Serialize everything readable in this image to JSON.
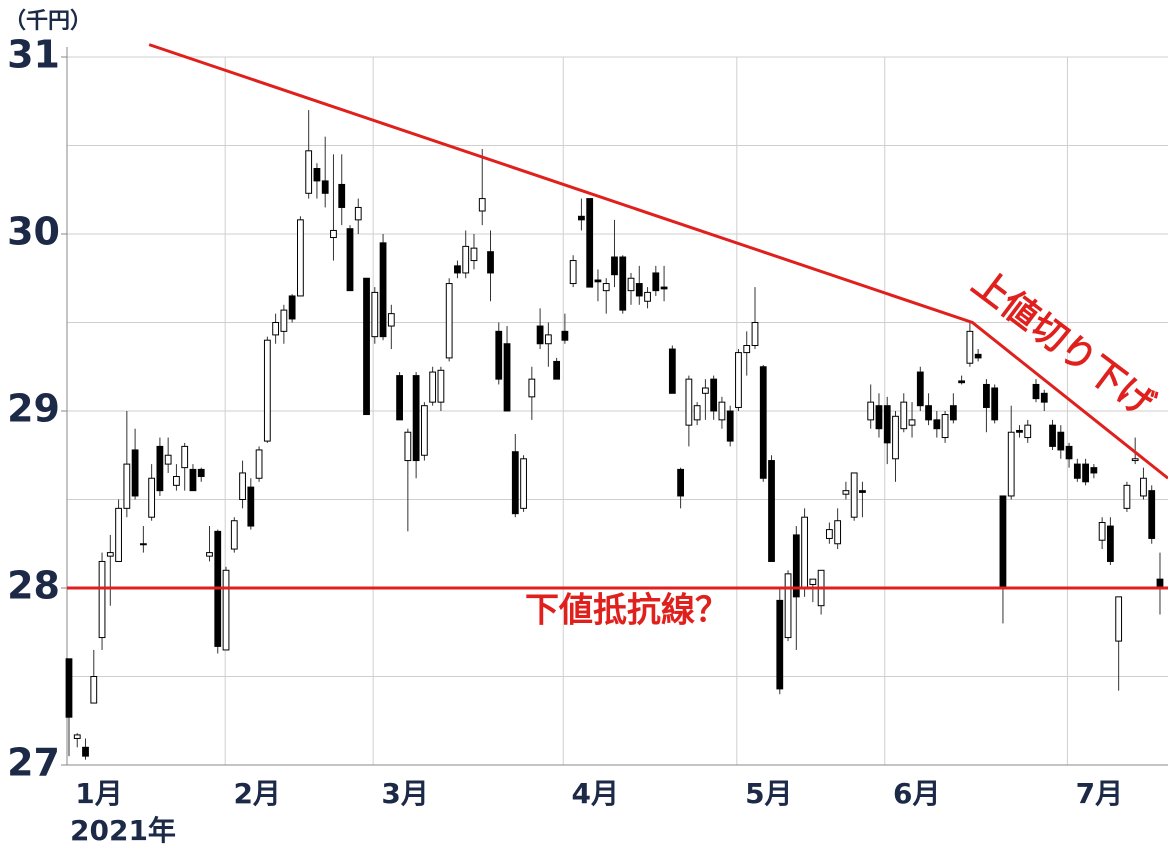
{
  "chart_data": {
    "type": "candlestick",
    "ylabel": "（千円）",
    "xlabel": "2021年",
    "ylim": [
      27,
      31
    ],
    "yticks": [
      27,
      28,
      29,
      30,
      31
    ],
    "minor_yticks": [
      27.5,
      28.5,
      29.5,
      30.5
    ],
    "xlim": [
      -0.24,
      132.97
    ],
    "xticks": [
      {
        "value": -0.24,
        "label": "1月"
      },
      {
        "value": 18.9,
        "label": "2月"
      },
      {
        "value": 36.8,
        "label": "3月"
      },
      {
        "value": 59.8,
        "label": "4月"
      },
      {
        "value": 80.8,
        "label": "5月"
      },
      {
        "value": 98.7,
        "label": "6月"
      },
      {
        "value": 120.8,
        "label": "7月"
      }
    ],
    "grid": true,
    "up_color": "#ffffff",
    "down_color": "#000000",
    "line_color": "#e0201c",
    "ohlc": [
      [
        27.6,
        27.6,
        27.05,
        27.27
      ],
      [
        27.15,
        27.18,
        27.1,
        27.17
      ],
      [
        27.1,
        27.15,
        27.03,
        27.05
      ],
      [
        27.35,
        27.65,
        27.35,
        27.5
      ],
      [
        27.72,
        28.2,
        27.65,
        28.15
      ],
      [
        28.18,
        28.3,
        27.9,
        28.2
      ],
      [
        28.15,
        28.5,
        28.15,
        28.45
      ],
      [
        28.45,
        29.0,
        28.4,
        28.7
      ],
      [
        28.78,
        28.9,
        28.5,
        28.52
      ],
      [
        28.25,
        28.35,
        28.2,
        28.25
      ],
      [
        28.4,
        28.7,
        28.38,
        28.62
      ],
      [
        28.8,
        28.85,
        28.52,
        28.55
      ],
      [
        28.7,
        28.85,
        28.65,
        28.75
      ],
      [
        28.58,
        28.7,
        28.55,
        28.63
      ],
      [
        28.68,
        28.82,
        28.55,
        28.8
      ],
      [
        28.67,
        28.7,
        28.55,
        28.55
      ],
      [
        28.67,
        28.68,
        28.6,
        28.63
      ],
      [
        28.18,
        28.35,
        28.15,
        28.2
      ],
      [
        28.32,
        28.33,
        27.63,
        27.67
      ],
      [
        27.65,
        28.12,
        27.65,
        28.1
      ],
      [
        28.22,
        28.4,
        28.2,
        28.38
      ],
      [
        28.5,
        28.72,
        28.45,
        28.65
      ],
      [
        28.57,
        28.62,
        28.33,
        28.35
      ],
      [
        28.62,
        28.8,
        28.6,
        28.78
      ],
      [
        28.83,
        29.42,
        28.82,
        29.4
      ],
      [
        29.43,
        29.55,
        29.38,
        29.5
      ],
      [
        29.45,
        29.6,
        29.38,
        29.57
      ],
      [
        29.65,
        29.66,
        29.5,
        29.52
      ],
      [
        29.65,
        30.1,
        29.65,
        30.08
      ],
      [
        30.23,
        30.7,
        30.2,
        30.47
      ],
      [
        30.37,
        30.4,
        30.2,
        30.3
      ],
      [
        30.3,
        30.55,
        30.15,
        30.23
      ],
      [
        29.98,
        30.45,
        29.85,
        30.02
      ],
      [
        30.28,
        30.45,
        30.05,
        30.15
      ],
      [
        30.03,
        30.05,
        29.68,
        29.68
      ],
      [
        30.08,
        30.2,
        30.0,
        30.15
      ],
      [
        29.75,
        29.75,
        28.98,
        28.98
      ],
      [
        29.42,
        29.7,
        29.38,
        29.67
      ],
      [
        29.95,
        30.0,
        29.4,
        29.42
      ],
      [
        29.48,
        29.6,
        29.35,
        29.55
      ],
      [
        29.2,
        29.22,
        28.95,
        28.95
      ],
      [
        28.72,
        28.9,
        28.32,
        28.88
      ],
      [
        29.2,
        29.22,
        28.62,
        28.72
      ],
      [
        28.75,
        29.05,
        28.72,
        29.03
      ],
      [
        29.05,
        29.25,
        29.03,
        29.22
      ],
      [
        29.05,
        29.25,
        29.0,
        29.23
      ],
      [
        29.3,
        29.75,
        29.28,
        29.72
      ],
      [
        29.82,
        29.85,
        29.75,
        29.78
      ],
      [
        29.78,
        30.02,
        29.75,
        29.93
      ],
      [
        29.85,
        30.0,
        29.8,
        29.92
      ],
      [
        30.13,
        30.48,
        30.05,
        30.2
      ],
      [
        29.9,
        30.02,
        29.62,
        29.78
      ],
      [
        29.45,
        29.5,
        29.15,
        29.18
      ],
      [
        29.38,
        29.48,
        29.0,
        29.0
      ],
      [
        28.77,
        28.87,
        28.4,
        28.42
      ],
      [
        28.45,
        28.75,
        28.43,
        28.73
      ],
      [
        29.08,
        29.25,
        28.95,
        29.18
      ],
      [
        29.48,
        29.58,
        29.35,
        29.38
      ],
      [
        29.38,
        29.5,
        29.25,
        29.43
      ],
      [
        29.28,
        29.3,
        29.18,
        29.18
      ],
      [
        29.45,
        29.55,
        29.38,
        29.4
      ],
      [
        29.72,
        29.88,
        29.7,
        29.85
      ],
      [
        30.1,
        30.2,
        30.02,
        30.08
      ],
      [
        30.2,
        30.2,
        29.7,
        29.7
      ],
      [
        29.74,
        29.8,
        29.62,
        29.73
      ],
      [
        29.68,
        29.75,
        29.55,
        29.72
      ],
      [
        29.87,
        30.08,
        29.7,
        29.77
      ],
      [
        29.87,
        29.88,
        29.55,
        29.57
      ],
      [
        29.68,
        29.78,
        29.6,
        29.75
      ],
      [
        29.72,
        29.82,
        29.6,
        29.65
      ],
      [
        29.62,
        29.7,
        29.58,
        29.67
      ],
      [
        29.78,
        29.82,
        29.65,
        29.68
      ],
      [
        29.7,
        29.82,
        29.62,
        29.69
      ],
      [
        29.35,
        29.37,
        29.1,
        29.1
      ],
      [
        28.67,
        28.68,
        28.45,
        28.52
      ],
      [
        28.92,
        29.2,
        28.8,
        29.18
      ],
      [
        28.95,
        29.05,
        28.92,
        29.03
      ],
      [
        29.1,
        29.18,
        28.95,
        29.13
      ],
      [
        29.18,
        29.2,
        28.95,
        29.0
      ],
      [
        28.95,
        29.08,
        28.9,
        29.05
      ],
      [
        29.0,
        29.03,
        28.8,
        28.83
      ],
      [
        29.02,
        29.35,
        29.0,
        29.33
      ],
      [
        29.33,
        29.45,
        29.2,
        29.37
      ],
      [
        29.37,
        29.7,
        29.35,
        29.5
      ],
      [
        29.25,
        29.26,
        28.6,
        28.62
      ],
      [
        28.72,
        28.75,
        28.15,
        28.15
      ],
      [
        27.93,
        28.0,
        27.4,
        27.43
      ],
      [
        27.72,
        28.1,
        27.7,
        28.08
      ],
      [
        28.3,
        28.35,
        27.65,
        27.95
      ],
      [
        28.0,
        28.45,
        27.95,
        28.4
      ],
      [
        28.02,
        28.05,
        27.92,
        28.05
      ],
      [
        27.9,
        28.1,
        27.85,
        28.1
      ],
      [
        28.28,
        28.37,
        28.25,
        28.33
      ],
      [
        28.25,
        28.45,
        28.22,
        28.38
      ],
      [
        28.53,
        28.6,
        28.5,
        28.55
      ],
      [
        28.4,
        28.65,
        28.38,
        28.65
      ],
      [
        28.55,
        28.6,
        28.4,
        28.54
      ],
      [
        28.95,
        29.15,
        28.9,
        29.05
      ],
      [
        29.03,
        29.1,
        28.85,
        28.9
      ],
      [
        29.03,
        29.08,
        28.7,
        28.82
      ],
      [
        28.73,
        29.0,
        28.6,
        28.97
      ],
      [
        28.9,
        29.1,
        28.88,
        29.05
      ],
      [
        28.92,
        29.05,
        28.85,
        28.95
      ],
      [
        29.22,
        29.25,
        29.0,
        29.03
      ],
      [
        29.03,
        29.1,
        28.92,
        28.95
      ],
      [
        28.95,
        29.0,
        28.85,
        28.9
      ],
      [
        28.85,
        29.0,
        28.82,
        28.98
      ],
      [
        29.03,
        29.1,
        28.93,
        28.95
      ],
      [
        29.17,
        29.2,
        29.15,
        29.16
      ],
      [
        29.27,
        29.5,
        29.25,
        29.45
      ],
      [
        29.32,
        29.35,
        29.28,
        29.3
      ],
      [
        29.15,
        29.18,
        28.88,
        29.02
      ],
      [
        29.13,
        29.15,
        28.93,
        28.95
      ],
      [
        28.52,
        28.52,
        27.8,
        28.0
      ],
      [
        28.52,
        29.03,
        28.5,
        28.88
      ],
      [
        28.89,
        28.92,
        28.85,
        28.88
      ],
      [
        28.85,
        28.95,
        28.82,
        28.92
      ],
      [
        29.15,
        29.18,
        29.05,
        29.07
      ],
      [
        29.1,
        29.12,
        29.0,
        29.05
      ],
      [
        28.92,
        28.95,
        28.78,
        28.8
      ],
      [
        28.88,
        28.92,
        28.73,
        28.78
      ],
      [
        28.8,
        28.82,
        28.68,
        28.73
      ],
      [
        28.7,
        28.73,
        28.6,
        28.62
      ],
      [
        28.7,
        28.73,
        28.58,
        28.6
      ],
      [
        28.68,
        28.7,
        28.62,
        28.65
      ],
      [
        28.27,
        28.4,
        28.22,
        28.37
      ],
      [
        28.35,
        28.4,
        28.13,
        28.15
      ],
      [
        27.7,
        27.95,
        27.42,
        27.95
      ],
      [
        28.45,
        28.6,
        28.43,
        28.58
      ],
      [
        28.72,
        28.85,
        28.7,
        28.73
      ],
      [
        28.52,
        28.68,
        28.5,
        28.62
      ],
      [
        28.55,
        28.58,
        28.25,
        28.28
      ],
      [
        28.05,
        28.2,
        27.85,
        28.0
      ]
    ],
    "trend_lines": [
      {
        "points": [
          [
            9.7,
            31.07
          ],
          [
            109.3,
            29.5
          ],
          [
            132.97,
            28.62
          ]
        ]
      },
      {
        "points": [
          [
            -0.24,
            28
          ],
          [
            132.97,
            28
          ]
        ]
      }
    ],
    "annotations": [
      "下値抵抗線？",
      "上値切り下げ"
    ]
  }
}
